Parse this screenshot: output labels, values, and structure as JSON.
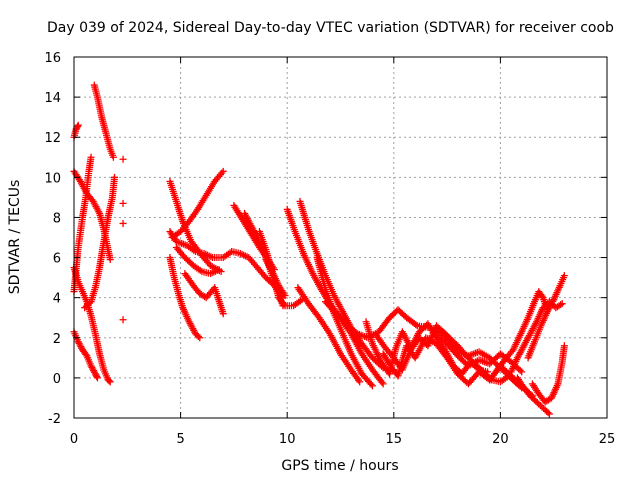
{
  "chart_data": {
    "type": "scatter",
    "title": "Day 039 of 2024, Sidereal Day-to-day VTEC variation (SDTVAR) for receiver coob",
    "xlabel": "GPS time / hours",
    "ylabel": "SDTVAR / TECUs",
    "xlim": [
      0,
      25
    ],
    "ylim": [
      -2,
      16
    ],
    "xticks": [
      "0",
      "5",
      "10",
      "15",
      "20",
      "25"
    ],
    "yticks": [
      "-2",
      "0",
      "2",
      "4",
      "6",
      "8",
      "10",
      "12",
      "14",
      "16"
    ],
    "grid": true,
    "marker": "plus",
    "color": "#ff0000",
    "series": [
      {
        "name": "trace-1",
        "points": [
          [
            0.0,
            12.0
          ],
          [
            0.1,
            12.4
          ],
          [
            0.2,
            12.6
          ]
        ]
      },
      {
        "name": "trace-2",
        "points": [
          [
            0.0,
            10.3
          ],
          [
            0.3,
            9.8
          ],
          [
            0.6,
            9.2
          ],
          [
            0.9,
            8.8
          ],
          [
            1.2,
            8.2
          ],
          [
            1.4,
            7.4
          ],
          [
            1.6,
            6.4
          ],
          [
            1.7,
            5.9
          ]
        ]
      },
      {
        "name": "trace-3",
        "points": [
          [
            0.0,
            5.5
          ],
          [
            0.2,
            4.8
          ],
          [
            0.4,
            4.3
          ],
          [
            0.6,
            3.8
          ],
          [
            0.8,
            3.1
          ],
          [
            1.0,
            2.2
          ],
          [
            1.2,
            1.2
          ],
          [
            1.4,
            0.4
          ],
          [
            1.6,
            -0.1
          ],
          [
            1.7,
            -0.2
          ]
        ]
      },
      {
        "name": "trace-4",
        "points": [
          [
            0.0,
            2.3
          ],
          [
            0.2,
            1.8
          ],
          [
            0.4,
            1.4
          ],
          [
            0.6,
            1.1
          ],
          [
            0.8,
            0.6
          ],
          [
            1.0,
            0.2
          ],
          [
            1.1,
            0.0
          ]
        ]
      },
      {
        "name": "trace-5",
        "points": [
          [
            0.0,
            4.3
          ],
          [
            0.2,
            6.5
          ],
          [
            0.4,
            8.0
          ],
          [
            0.55,
            9.0
          ],
          [
            0.7,
            10.3
          ],
          [
            0.8,
            11.0
          ]
        ]
      },
      {
        "name": "trace-6",
        "points": [
          [
            0.5,
            3.5
          ],
          [
            0.8,
            3.8
          ],
          [
            1.0,
            4.5
          ],
          [
            1.2,
            5.5
          ],
          [
            1.4,
            6.8
          ],
          [
            1.6,
            8.0
          ],
          [
            1.8,
            9.0
          ],
          [
            1.9,
            10.0
          ]
        ]
      },
      {
        "name": "trace-7",
        "points": [
          [
            0.95,
            14.6
          ],
          [
            1.1,
            14.0
          ],
          [
            1.3,
            13.0
          ],
          [
            1.5,
            12.2
          ],
          [
            1.7,
            11.4
          ],
          [
            1.85,
            11.0
          ]
        ]
      },
      {
        "name": "trace-8",
        "points": [
          [
            2.3,
            10.9
          ],
          [
            2.3,
            8.7
          ],
          [
            2.3,
            7.7
          ],
          [
            2.3,
            2.9
          ]
        ]
      },
      {
        "name": "trace-9",
        "points": [
          [
            4.5,
            9.8
          ],
          [
            4.8,
            8.8
          ],
          [
            5.1,
            7.8
          ],
          [
            5.5,
            6.8
          ],
          [
            6.0,
            6.1
          ],
          [
            6.4,
            5.6
          ],
          [
            6.9,
            5.3
          ]
        ]
      },
      {
        "name": "trace-10",
        "points": [
          [
            4.5,
            7.3
          ],
          [
            4.8,
            6.8
          ],
          [
            5.3,
            6.6
          ],
          [
            5.7,
            6.3
          ],
          [
            6.1,
            6.2
          ],
          [
            6.5,
            6.0
          ],
          [
            7.0,
            6.0
          ],
          [
            7.4,
            6.3
          ]
        ]
      },
      {
        "name": "trace-11",
        "points": [
          [
            4.5,
            6.0
          ],
          [
            4.7,
            5.0
          ],
          [
            4.9,
            4.2
          ],
          [
            5.1,
            3.5
          ],
          [
            5.4,
            2.8
          ],
          [
            5.7,
            2.2
          ],
          [
            5.9,
            2.0
          ]
        ]
      },
      {
        "name": "trace-12",
        "points": [
          [
            4.6,
            7.0
          ],
          [
            5.0,
            7.3
          ],
          [
            5.4,
            7.8
          ],
          [
            5.8,
            8.4
          ],
          [
            6.2,
            9.1
          ],
          [
            6.6,
            9.8
          ],
          [
            7.0,
            10.3
          ]
        ]
      },
      {
        "name": "trace-13",
        "points": [
          [
            4.8,
            6.5
          ],
          [
            5.2,
            6.0
          ],
          [
            5.6,
            5.6
          ],
          [
            6.0,
            5.3
          ],
          [
            6.4,
            5.2
          ],
          [
            6.8,
            5.4
          ]
        ]
      },
      {
        "name": "trace-14",
        "points": [
          [
            5.2,
            5.2
          ],
          [
            5.6,
            4.6
          ],
          [
            5.9,
            4.2
          ],
          [
            6.2,
            4.0
          ],
          [
            6.6,
            4.5
          ],
          [
            7.0,
            3.2
          ]
        ]
      },
      {
        "name": "trace-15",
        "points": [
          [
            7.4,
            6.3
          ],
          [
            7.8,
            6.2
          ],
          [
            8.2,
            6.0
          ],
          [
            8.6,
            5.5
          ],
          [
            9.0,
            5.0
          ],
          [
            9.4,
            4.6
          ],
          [
            9.8,
            4.0
          ]
        ]
      },
      {
        "name": "trace-16",
        "points": [
          [
            7.5,
            8.6
          ],
          [
            7.9,
            7.9
          ],
          [
            8.3,
            7.2
          ],
          [
            8.7,
            6.5
          ],
          [
            9.1,
            5.9
          ],
          [
            9.4,
            5.4
          ]
        ]
      },
      {
        "name": "trace-17",
        "points": [
          [
            8.0,
            8.2
          ],
          [
            8.3,
            7.6
          ],
          [
            8.6,
            7.0
          ],
          [
            8.9,
            6.3
          ],
          [
            9.2,
            5.4
          ],
          [
            9.5,
            4.4
          ],
          [
            9.8,
            3.6
          ]
        ]
      },
      {
        "name": "trace-18",
        "points": [
          [
            8.7,
            7.3
          ],
          [
            9.0,
            6.4
          ],
          [
            9.3,
            5.3
          ],
          [
            9.6,
            4.0
          ],
          [
            9.9,
            3.6
          ],
          [
            10.3,
            3.6
          ],
          [
            10.7,
            3.9
          ]
        ]
      },
      {
        "name": "trace-19",
        "points": [
          [
            9.0,
            5.9
          ],
          [
            9.3,
            5.3
          ],
          [
            9.6,
            4.6
          ],
          [
            9.9,
            4.1
          ]
        ]
      },
      {
        "name": "trace-20",
        "points": [
          [
            10.0,
            8.4
          ],
          [
            10.4,
            7.2
          ],
          [
            10.8,
            6.1
          ],
          [
            11.2,
            5.2
          ],
          [
            11.6,
            4.4
          ],
          [
            12.0,
            3.7
          ],
          [
            12.5,
            3.0
          ],
          [
            13.0,
            2.2
          ],
          [
            13.5,
            1.2
          ],
          [
            14.0,
            0.4
          ],
          [
            14.5,
            -0.3
          ]
        ]
      },
      {
        "name": "trace-21",
        "points": [
          [
            10.6,
            8.8
          ],
          [
            11.0,
            7.4
          ],
          [
            11.4,
            6.2
          ],
          [
            11.8,
            5.1
          ],
          [
            12.2,
            4.1
          ],
          [
            12.6,
            3.3
          ],
          [
            13.0,
            2.5
          ],
          [
            13.5,
            1.7
          ],
          [
            14.0,
            1.0
          ],
          [
            14.5,
            0.5
          ]
        ]
      },
      {
        "name": "trace-22",
        "points": [
          [
            11.4,
            6.0
          ],
          [
            11.8,
            4.4
          ],
          [
            12.2,
            3.2
          ],
          [
            12.6,
            2.2
          ],
          [
            13.0,
            1.2
          ],
          [
            13.5,
            0.2
          ],
          [
            14.0,
            -0.4
          ]
        ]
      },
      {
        "name": "trace-23",
        "points": [
          [
            10.5,
            4.5
          ],
          [
            11.0,
            3.7
          ],
          [
            11.5,
            3.0
          ],
          [
            12.0,
            2.2
          ],
          [
            12.5,
            1.2
          ],
          [
            13.0,
            0.4
          ],
          [
            13.4,
            -0.2
          ]
        ]
      },
      {
        "name": "trace-24",
        "points": [
          [
            11.8,
            3.8
          ],
          [
            12.3,
            3.2
          ],
          [
            12.8,
            2.6
          ],
          [
            13.3,
            2.2
          ],
          [
            13.8,
            2.0
          ],
          [
            14.3,
            2.3
          ],
          [
            14.8,
            3.0
          ],
          [
            15.2,
            3.4
          ],
          [
            15.6,
            3.0
          ],
          [
            16.1,
            2.6
          ],
          [
            16.7,
            2.5
          ],
          [
            17.1,
            2.2
          ],
          [
            17.5,
            1.7
          ],
          [
            18.0,
            1.1
          ],
          [
            18.5,
            0.6
          ],
          [
            19.0,
            0.9
          ],
          [
            19.5,
            0.7
          ],
          [
            20.0,
            1.2
          ],
          [
            20.5,
            0.8
          ],
          [
            21.0,
            0.3
          ]
        ]
      },
      {
        "name": "trace-25",
        "points": [
          [
            13.7,
            2.8
          ],
          [
            14.0,
            1.7
          ],
          [
            14.4,
            0.8
          ],
          [
            14.8,
            0.2
          ],
          [
            15.1,
            1.5
          ],
          [
            15.4,
            2.3
          ],
          [
            15.8,
            1.5
          ],
          [
            16.2,
            2.3
          ],
          [
            16.6,
            2.7
          ],
          [
            17.0,
            2.0
          ],
          [
            17.4,
            1.4
          ],
          [
            17.8,
            0.6
          ],
          [
            18.2,
            0.2
          ],
          [
            18.6,
            0.8
          ],
          [
            19.0,
            0.4
          ],
          [
            19.4,
            0.3
          ]
        ]
      },
      {
        "name": "trace-26",
        "points": [
          [
            14.2,
            2.1
          ],
          [
            14.6,
            1.5
          ],
          [
            15.0,
            1.0
          ],
          [
            15.4,
            0.4
          ],
          [
            15.8,
            1.4
          ],
          [
            16.2,
            2.0
          ],
          [
            16.6,
            1.6
          ],
          [
            17.0,
            2.6
          ],
          [
            17.5,
            2.1
          ],
          [
            18.0,
            1.3
          ],
          [
            18.5,
            1.1
          ],
          [
            19.0,
            1.3
          ],
          [
            19.5,
            1.0
          ],
          [
            20.0,
            0.5
          ],
          [
            20.5,
            0.0
          ],
          [
            21.0,
            -0.5
          ]
        ]
      },
      {
        "name": "trace-27",
        "points": [
          [
            14.5,
            1.2
          ],
          [
            14.9,
            0.5
          ],
          [
            15.2,
            0.1
          ],
          [
            15.6,
            1.6
          ],
          [
            16.0,
            1.0
          ],
          [
            16.5,
            2.0
          ],
          [
            17.0,
            1.7
          ],
          [
            17.5,
            1.0
          ],
          [
            18.0,
            0.2
          ],
          [
            18.5,
            -0.3
          ],
          [
            19.0,
            0.3
          ],
          [
            19.5,
            -0.1
          ],
          [
            20.0,
            0.6
          ],
          [
            20.5,
            0.1
          ],
          [
            21.0,
            -0.4
          ],
          [
            21.5,
            -0.9
          ]
        ]
      },
      {
        "name": "trace-28",
        "points": [
          [
            17.2,
            2.4
          ],
          [
            17.6,
            2.0
          ],
          [
            18.0,
            1.6
          ],
          [
            18.4,
            1.1
          ],
          [
            18.8,
            0.7
          ],
          [
            19.2,
            0.3
          ],
          [
            19.6,
            -0.1
          ],
          [
            20.0,
            -0.2
          ],
          [
            20.4,
            0.1
          ],
          [
            20.8,
            -0.3
          ]
        ]
      },
      {
        "name": "trace-29",
        "points": [
          [
            19.8,
            0.3
          ],
          [
            20.2,
            0.9
          ],
          [
            20.6,
            1.4
          ],
          [
            21.0,
            2.3
          ],
          [
            21.3,
            3.0
          ],
          [
            21.6,
            3.8
          ],
          [
            21.8,
            4.3
          ],
          [
            22.0,
            4.0
          ],
          [
            22.2,
            3.4
          ]
        ]
      },
      {
        "name": "trace-30",
        "points": [
          [
            20.5,
            0.3
          ],
          [
            20.8,
            1.0
          ],
          [
            21.1,
            1.6
          ],
          [
            21.4,
            2.2
          ],
          [
            21.7,
            2.8
          ],
          [
            22.0,
            3.5
          ],
          [
            22.3,
            3.8
          ],
          [
            22.6,
            3.5
          ],
          [
            22.9,
            3.7
          ]
        ]
      },
      {
        "name": "trace-31",
        "points": [
          [
            21.3,
            1.0
          ],
          [
            21.6,
            1.8
          ],
          [
            21.9,
            2.6
          ],
          [
            22.2,
            3.3
          ],
          [
            22.5,
            3.9
          ],
          [
            22.8,
            4.6
          ],
          [
            23.0,
            5.1
          ]
        ]
      },
      {
        "name": "trace-32",
        "points": [
          [
            20.8,
            0.0
          ],
          [
            21.1,
            -0.5
          ],
          [
            21.4,
            -0.9
          ],
          [
            21.8,
            -1.3
          ],
          [
            22.1,
            -1.6
          ],
          [
            22.3,
            -1.8
          ]
        ]
      },
      {
        "name": "trace-33",
        "points": [
          [
            21.5,
            -0.3
          ],
          [
            21.8,
            -0.8
          ],
          [
            22.1,
            -1.2
          ],
          [
            22.4,
            -1.0
          ],
          [
            22.7,
            -0.3
          ],
          [
            22.9,
            0.8
          ],
          [
            23.0,
            1.6
          ]
        ]
      }
    ]
  }
}
